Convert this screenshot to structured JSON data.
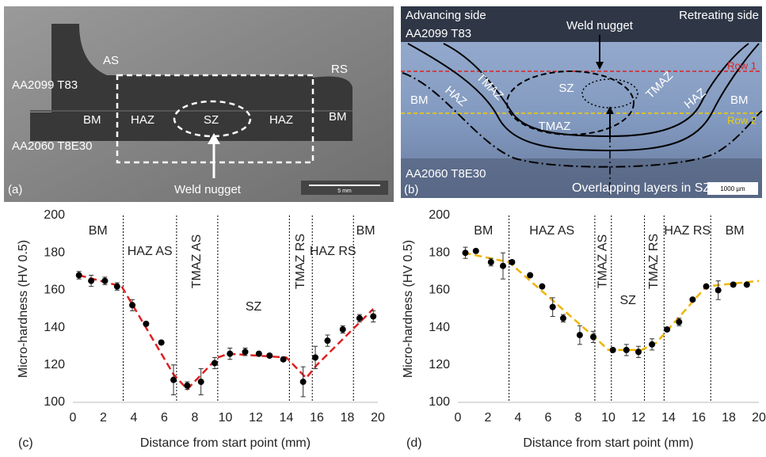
{
  "panel_a": {
    "label": "(a)",
    "scale_bar": "5 mm",
    "labels": [
      "AA2099 T83",
      "AS",
      "RS",
      "BM",
      "HAZ",
      "SZ",
      "HAZ",
      "BM",
      "AA2060 T8E30",
      "Weld nugget"
    ]
  },
  "panel_b": {
    "label": "(b)",
    "scale_bar": "1000 µm",
    "labels": [
      "Advancing side",
      "Retreating side",
      "AA2099 T83",
      "Weld nugget",
      "Row 1",
      "Row 2",
      "BM",
      "HAZ",
      "TMAZ",
      "SZ",
      "TMAZ",
      "HAZ",
      "BM",
      "TMAZ",
      "AA2060 T8E30",
      "Overlapping layers in SZ"
    ]
  },
  "chart_data": [
    {
      "type": "scatter",
      "panel_label": "(c)",
      "x_label": "Distance from start point (mm)",
      "y_label": "Micro-hardness (HV 0.5)",
      "xlim": [
        0,
        20
      ],
      "xticks": [
        0,
        2,
        4,
        6,
        8,
        10,
        12,
        14,
        16,
        18,
        20
      ],
      "ylim": [
        100,
        200
      ],
      "yticks": [
        100,
        120,
        140,
        160,
        180,
        200
      ],
      "x": [
        0.4,
        1.2,
        2.1,
        2.9,
        3.9,
        4.8,
        5.8,
        6.6,
        7.5,
        8.4,
        9.3,
        10.3,
        11.3,
        12.2,
        12.9,
        13.8,
        15.1,
        15.9,
        16.7,
        17.7,
        18.8,
        19.7
      ],
      "values": [
        168,
        165,
        165,
        162,
        152,
        142,
        132,
        112,
        109,
        111,
        121,
        126,
        127,
        126,
        125,
        123,
        111,
        124,
        133,
        139,
        145,
        146
      ],
      "errors": [
        2,
        3,
        2,
        2,
        3,
        1,
        1,
        8,
        2,
        7,
        3,
        3,
        2,
        1,
        1,
        1,
        8,
        6,
        3,
        2,
        2,
        3
      ],
      "color": "#000000",
      "trend": {
        "color": "#e02020",
        "x": [
          0.4,
          3.2,
          6.6,
          7.5,
          9.5,
          10.2,
          14.0,
          15.3,
          16.0,
          19.7
        ],
        "values": [
          168,
          162,
          115,
          107,
          124,
          126,
          124,
          113,
          120,
          150
        ]
      },
      "zone_boundaries": [
        3.3,
        6.8,
        9.5,
        14.2,
        15.7,
        18.4
      ],
      "zones": [
        "BM",
        "HAZ AS",
        "TMAZ AS",
        "SZ",
        "TMAZ RS",
        "HAZ RS",
        "BM"
      ],
      "vertical_zones": [
        false,
        false,
        true,
        false,
        true,
        false,
        false
      ]
    },
    {
      "type": "scatter",
      "panel_label": "(d)",
      "x_label": "Distance from start point (mm)",
      "y_label": "Micro-hardness (HV 0.5)",
      "xlim": [
        0,
        20
      ],
      "xticks": [
        0,
        2,
        4,
        6,
        8,
        10,
        12,
        14,
        16,
        18,
        20
      ],
      "ylim": [
        100,
        200
      ],
      "yticks": [
        100,
        120,
        140,
        160,
        180,
        200
      ],
      "x": [
        0.5,
        1.2,
        2.2,
        3.0,
        3.6,
        4.8,
        5.6,
        6.3,
        7.0,
        8.1,
        9.0,
        10.3,
        11.2,
        12.0,
        12.9,
        13.9,
        14.7,
        15.6,
        16.5,
        17.3,
        18.3,
        19.2
      ],
      "values": [
        180,
        181,
        175,
        173,
        175,
        168,
        162,
        151,
        145,
        136,
        135,
        128,
        128,
        127,
        131,
        139,
        143,
        155,
        162,
        160,
        163,
        163
      ],
      "errors": [
        3,
        1,
        2,
        7,
        1,
        1,
        1,
        5,
        2,
        5,
        3,
        1,
        3,
        3,
        3,
        1,
        2,
        1,
        1,
        5,
        1,
        1
      ],
      "color": "#000000",
      "trend": {
        "color": "#f0b400",
        "x": [
          0.4,
          3.4,
          9.2,
          10.0,
          12.2,
          13.2,
          16.5,
          20.0
        ],
        "values": [
          180,
          175,
          134,
          128,
          128,
          132,
          162,
          165
        ]
      },
      "zone_boundaries": [
        3.4,
        9.1,
        10.2,
        12.4,
        13.7,
        16.8
      ],
      "zones": [
        "BM",
        "HAZ AS",
        "TMAZ AS",
        "SZ",
        "TMAZ RS",
        "HAZ RS",
        "BM"
      ],
      "vertical_zones": [
        false,
        false,
        true,
        false,
        true,
        false,
        false
      ]
    }
  ]
}
